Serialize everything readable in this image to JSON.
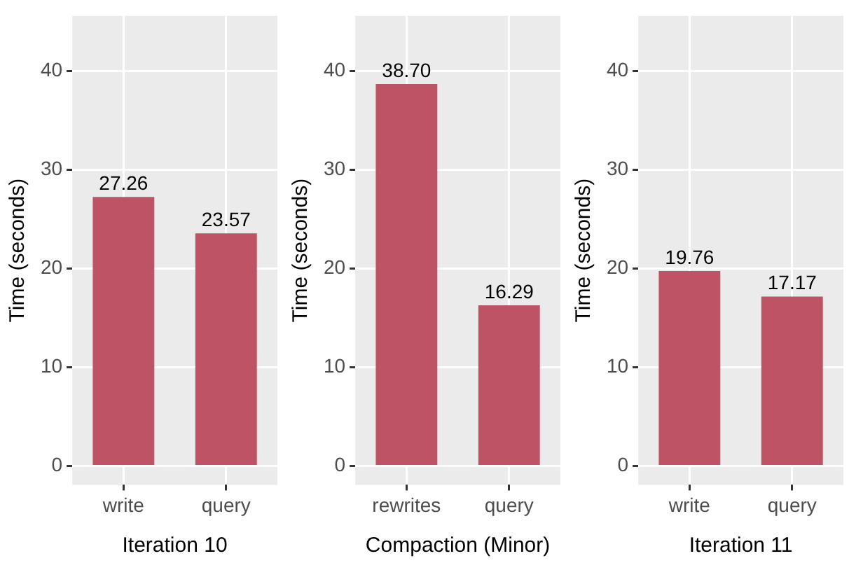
{
  "chart_data": [
    {
      "type": "bar",
      "xlabel": "Iteration 10",
      "ylabel": "Time (seconds)",
      "categories": [
        "write",
        "query"
      ],
      "values": [
        27.26,
        23.57
      ],
      "value_labels": [
        "27.26",
        "23.57"
      ],
      "color": "#bf5366",
      "ylim": [
        -1.9,
        45.6
      ],
      "yticks": [
        0,
        10,
        20,
        30,
        40
      ],
      "grid": true
    },
    {
      "type": "bar",
      "xlabel": "Compaction (Minor)",
      "ylabel": "Time (seconds)",
      "categories": [
        "rewrites",
        "query"
      ],
      "values": [
        38.7,
        16.29
      ],
      "value_labels": [
        "38.70",
        "16.29"
      ],
      "color": "#bf5366",
      "ylim": [
        -1.9,
        45.6
      ],
      "yticks": [
        0,
        10,
        20,
        30,
        40
      ],
      "grid": true
    },
    {
      "type": "bar",
      "xlabel": "Iteration 11",
      "ylabel": "Time (seconds)",
      "categories": [
        "write",
        "query"
      ],
      "values": [
        19.76,
        17.17
      ],
      "value_labels": [
        "19.76",
        "17.17"
      ],
      "color": "#bf5366",
      "ylim": [
        -1.9,
        45.6
      ],
      "yticks": [
        0,
        10,
        20,
        30,
        40
      ],
      "grid": true
    }
  ]
}
